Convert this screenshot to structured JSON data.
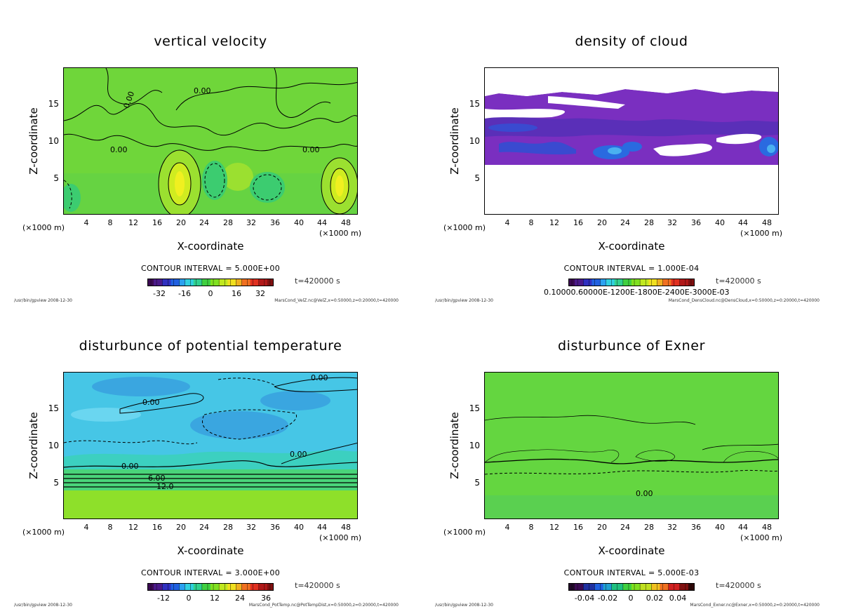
{
  "common": {
    "ylabel": "Z-coordinate",
    "xlabel": "X-coordinate",
    "xunit": "(×1000 m)",
    "time": "t=420000 s",
    "footer_left": "/usr/bin/gpview  2008-12-30",
    "yticks": [
      "5",
      "10",
      "15"
    ],
    "xticks": [
      "4",
      "8",
      "12",
      "16",
      "20",
      "24",
      "28",
      "32",
      "36",
      "40",
      "44",
      "48"
    ]
  },
  "chart_data": [
    {
      "type": "heatmap",
      "title": "vertical velocity",
      "xlabel": "X-coordinate",
      "ylabel": "Z-coordinate",
      "xlim": [
        0,
        50
      ],
      "ylim": [
        0,
        20
      ],
      "contour_interval": "CONTOUR INTERVAL = 5.000E+00",
      "colorbar_ticks": [
        "-32",
        "-16",
        "0",
        "16",
        "32"
      ],
      "contour_labels": [
        "0.00",
        "0.00",
        "0.00",
        "0.00"
      ],
      "footer_right": "MarsCond_VelZ.nc@VelZ,x=0:50000,z=0:20000,t=420000",
      "time": "t=420000 s"
    },
    {
      "type": "heatmap",
      "title": "density of cloud",
      "xlabel": "X-coordinate",
      "ylabel": "Z-coordinate",
      "xlim": [
        0,
        50
      ],
      "ylim": [
        0,
        20
      ],
      "contour_interval": "CONTOUR INTERVAL = 1.000E-04",
      "colorbar_ticks_text": "0.10000.60000E-1200E-1800E-2400E-3000E-03",
      "footer_right": "MarsCond_DensCloud.nc@DensCloud,x=0:50000,z=0:20000,t=420000",
      "time": "t=420000 s"
    },
    {
      "type": "heatmap",
      "title": "disturbunce of potential temperature",
      "xlabel": "X-coordinate",
      "ylabel": "Z-coordinate",
      "xlim": [
        0,
        50
      ],
      "ylim": [
        0,
        20
      ],
      "contour_interval": "CONTOUR INTERVAL = 3.000E+00",
      "colorbar_ticks": [
        "-12",
        "0",
        "12",
        "24",
        "36"
      ],
      "contour_labels": [
        "0.00",
        "0.00",
        "0.00",
        "0.00",
        "6.00",
        "12.0"
      ],
      "footer_right": "MarsCond_PotTemp.nc@PotTempDist,x=0:50000,z=0:20000,t=420000",
      "time": "t=420000 s"
    },
    {
      "type": "heatmap",
      "title": "disturbunce of Exner",
      "xlabel": "X-coordinate",
      "ylabel": "Z-coordinate",
      "xlim": [
        0,
        50
      ],
      "ylim": [
        0,
        20
      ],
      "contour_interval": "CONTOUR INTERVAL = 5.000E-03",
      "colorbar_ticks": [
        "-0.04",
        "-0.02",
        "0",
        "0.02",
        "0.04"
      ],
      "contour_labels": [
        "0.00"
      ],
      "footer_right": "MarsCond_Exner.nc@Exner,x=0:50000,z=0:20000,t=420000",
      "time": "t=420000 s"
    }
  ]
}
